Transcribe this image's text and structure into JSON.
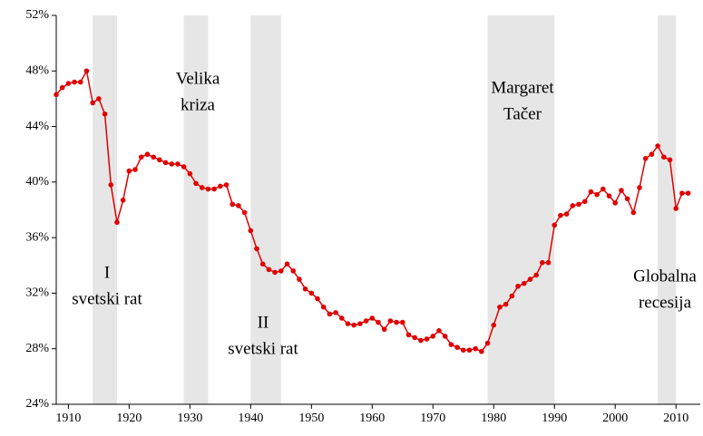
{
  "chart_data": {
    "type": "line",
    "x": [
      1908,
      1909,
      1910,
      1911,
      1912,
      1913,
      1914,
      1915,
      1916,
      1917,
      1918,
      1919,
      1920,
      1921,
      1922,
      1923,
      1924,
      1925,
      1926,
      1927,
      1928,
      1929,
      1930,
      1931,
      1932,
      1933,
      1934,
      1935,
      1936,
      1937,
      1938,
      1939,
      1940,
      1941,
      1942,
      1943,
      1944,
      1945,
      1946,
      1947,
      1948,
      1949,
      1950,
      1951,
      1952,
      1953,
      1954,
      1955,
      1956,
      1957,
      1958,
      1959,
      1960,
      1961,
      1962,
      1963,
      1964,
      1965,
      1966,
      1967,
      1968,
      1969,
      1970,
      1971,
      1972,
      1973,
      1974,
      1975,
      1976,
      1977,
      1978,
      1979,
      1980,
      1981,
      1982,
      1983,
      1984,
      1985,
      1986,
      1987,
      1988,
      1989,
      1990,
      1991,
      1992,
      1993,
      1994,
      1995,
      1996,
      1997,
      1998,
      1999,
      2000,
      2001,
      2002,
      2003,
      2004,
      2005,
      2006,
      2007,
      2008,
      2009,
      2010,
      2011,
      2012
    ],
    "series": [
      {
        "color": "#e00000",
        "values": [
          46.3,
          46.8,
          47.1,
          47.2,
          47.2,
          48.0,
          45.7,
          46.0,
          44.9,
          39.8,
          37.1,
          38.7,
          40.8,
          40.9,
          41.8,
          42.0,
          41.8,
          41.6,
          41.4,
          41.3,
          41.3,
          41.1,
          40.6,
          39.9,
          39.6,
          39.5,
          39.5,
          39.7,
          39.8,
          38.4,
          38.3,
          37.8,
          36.5,
          35.2,
          34.1,
          33.7,
          33.5,
          33.6,
          34.1,
          33.6,
          33.0,
          32.3,
          32.0,
          31.6,
          31.0,
          30.5,
          30.6,
          30.2,
          29.8,
          29.7,
          29.8,
          30.0,
          30.2,
          29.9,
          29.4,
          30.0,
          29.9,
          29.9,
          29.0,
          28.8,
          28.6,
          28.7,
          28.9,
          29.3,
          28.9,
          28.3,
          28.1,
          27.9,
          27.9,
          28.0,
          27.8,
          28.4,
          29.7,
          31.0,
          31.2,
          31.8,
          32.5,
          32.7,
          33.0,
          33.3,
          34.2,
          34.2,
          36.9,
          37.6,
          37.7,
          38.3,
          38.4,
          38.6,
          39.3,
          39.1,
          39.5,
          39.0,
          38.5,
          39.4,
          38.8,
          37.8,
          39.6,
          41.7,
          42.0,
          42.6,
          41.8,
          41.6,
          38.1,
          39.2,
          39.2
        ]
      }
    ],
    "xlim": [
      1908,
      2014
    ],
    "xticks": [
      1910,
      1920,
      1930,
      1940,
      1950,
      1960,
      1970,
      1980,
      1990,
      2000,
      2010
    ],
    "ylim": [
      24,
      52
    ],
    "yticks": [
      {
        "value": 24,
        "label": "24%"
      },
      {
        "value": 28,
        "label": "28%"
      },
      {
        "value": 32,
        "label": "32%"
      },
      {
        "value": 36,
        "label": "36%"
      },
      {
        "value": 40,
        "label": "40%"
      },
      {
        "value": 44,
        "label": "44%"
      },
      {
        "value": 48,
        "label": "48%"
      },
      {
        "value": 52,
        "label": "52%"
      }
    ],
    "band_color": "#e6e6e6",
    "bands": [
      [
        1914,
        1918
      ],
      [
        1929,
        1933
      ],
      [
        1940,
        1945
      ],
      [
        1979,
        1990
      ],
      [
        2007,
        2010
      ]
    ],
    "annotations": [
      [
        "I",
        "svetski rat"
      ],
      [
        "Velika",
        "kriza"
      ],
      [
        "II",
        "svetski rat"
      ],
      [
        "Margaret",
        "Tačer"
      ],
      [
        "Globalna",
        "recesija"
      ]
    ]
  }
}
